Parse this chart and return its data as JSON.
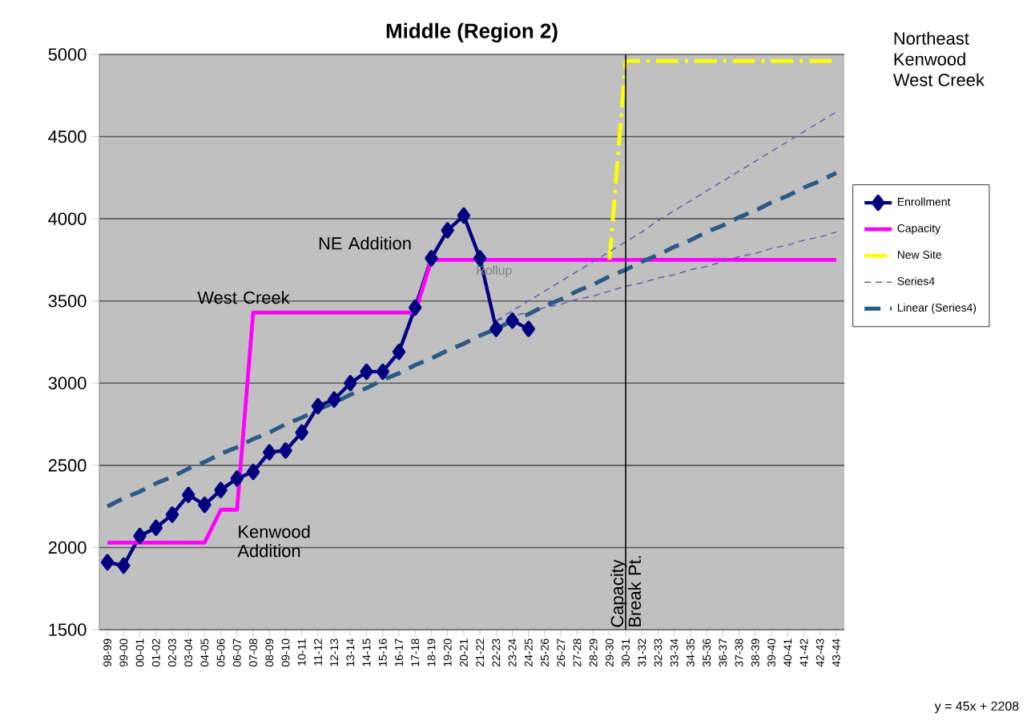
{
  "chart_data": {
    "type": "line",
    "title": "Middle (Region 2)",
    "categories": [
      "98-99",
      "99-00",
      "00-01",
      "01-02",
      "02-03",
      "03-04",
      "04-05",
      "05-06",
      "06-07",
      "07-08",
      "08-09",
      "09-10",
      "10-11",
      "11-12",
      "12-13",
      "13-14",
      "14-15",
      "15-16",
      "16-17",
      "17-18",
      "18-19",
      "19-20",
      "20-21",
      "21-22",
      "22-23",
      "23-24",
      "24-25",
      "25-26",
      "26-27",
      "27-28",
      "28-29",
      "29-30",
      "30-31",
      "31-32",
      "32-33",
      "33-34",
      "34-35",
      "35-36",
      "36-37",
      "37-38",
      "38-39",
      "39-40",
      "40-41",
      "41-42",
      "42-43",
      "43-44"
    ],
    "ylim": [
      1500,
      5000
    ],
    "yticks": [
      1500,
      2000,
      2500,
      3000,
      3500,
      4000,
      4500,
      5000
    ],
    "grid": "y",
    "legend": "right",
    "series": [
      {
        "name": "Enrollment",
        "color": "#000080",
        "marker": "diamond",
        "line_style": "solid",
        "values": [
          1910,
          1890,
          2070,
          2120,
          2200,
          2320,
          2260,
          2350,
          2420,
          2460,
          2580,
          2590,
          2700,
          2860,
          2900,
          3000,
          3070,
          3070,
          3190,
          3460,
          3760,
          3930,
          4020,
          3760,
          3330,
          3380,
          3330,
          null,
          null,
          null,
          null,
          null,
          null,
          null,
          null,
          null,
          null,
          null,
          null,
          null,
          null,
          null,
          null,
          null,
          null,
          null
        ]
      },
      {
        "name": "Capacity",
        "color": "#ff00ff",
        "marker": "none",
        "line_style": "solid",
        "values": [
          2030,
          2030,
          2030,
          2030,
          2030,
          2030,
          2030,
          2230,
          2230,
          3430,
          3430,
          3430,
          3430,
          3430,
          3430,
          3430,
          3430,
          3430,
          3430,
          3430,
          3750,
          3750,
          3750,
          3750,
          3750,
          3750,
          3750,
          3750,
          3750,
          3750,
          3750,
          3750,
          3750,
          3750,
          3750,
          3750,
          3750,
          3750,
          3750,
          3750,
          3750,
          3750,
          3750,
          3750,
          3750,
          3750
        ]
      },
      {
        "name": "New Site",
        "color": "#ffff00",
        "marker": "none",
        "line_style": "dashed",
        "values": [
          null,
          null,
          null,
          null,
          null,
          null,
          null,
          null,
          null,
          null,
          null,
          null,
          null,
          null,
          null,
          null,
          null,
          null,
          null,
          null,
          null,
          null,
          null,
          null,
          null,
          null,
          null,
          null,
          null,
          null,
          null,
          3750,
          4960,
          4960,
          4960,
          4960,
          4960,
          4960,
          4960,
          4960,
          4960,
          4960,
          4960,
          4960,
          4960,
          4960
        ]
      },
      {
        "name": "Series4",
        "color": "#5a5ab4",
        "marker": "none",
        "line_style": "dashed",
        "values": [
          null,
          null,
          null,
          null,
          null,
          null,
          null,
          null,
          null,
          null,
          null,
          null,
          null,
          null,
          null,
          null,
          null,
          null,
          null,
          null,
          null,
          null,
          null,
          null,
          3380,
          3440,
          3500,
          3560,
          3620,
          3680,
          3740,
          3800,
          3860,
          3920,
          3990,
          4050,
          4110,
          4170,
          4230,
          4290,
          4350,
          4410,
          4470,
          4530,
          4590,
          4650
        ]
      },
      {
        "color": "#5a5ab4",
        "marker": "none",
        "line_style": "dashed",
        "values": [
          null,
          null,
          null,
          null,
          null,
          null,
          null,
          null,
          null,
          null,
          null,
          null,
          null,
          null,
          null,
          null,
          null,
          null,
          null,
          null,
          null,
          null,
          null,
          null,
          3380,
          3410,
          3430,
          3460,
          3480,
          3510,
          3530,
          3560,
          3590,
          3610,
          3640,
          3660,
          3690,
          3710,
          3740,
          3770,
          3790,
          3820,
          3840,
          3870,
          3890,
          3920
        ]
      },
      {
        "name": "Linear (Series4)",
        "color": "#2a5a85",
        "marker": "none",
        "line_style": "dashed",
        "values": [
          2250,
          2300,
          2340,
          2390,
          2430,
          2480,
          2520,
          2570,
          2610,
          2660,
          2700,
          2750,
          2790,
          2840,
          2880,
          2930,
          2970,
          3020,
          3060,
          3110,
          3150,
          3200,
          3240,
          3290,
          3330,
          3380,
          3420,
          3470,
          3510,
          3560,
          3600,
          3650,
          3690,
          3740,
          3780,
          3830,
          3870,
          3920,
          3960,
          4010,
          4050,
          4100,
          4140,
          4190,
          4230,
          4280
        ]
      }
    ],
    "ref_lines": [
      {
        "axis": "x",
        "value": "30-31",
        "label": "Capacity Break Pt.",
        "color": "#000000"
      }
    ],
    "annotations": [
      "West Creek",
      "Kenwood Addition",
      "NE Addition",
      "Rollup",
      "Northeast",
      "Kenwood",
      "West Creek",
      "y = 45x + 2208"
    ]
  }
}
